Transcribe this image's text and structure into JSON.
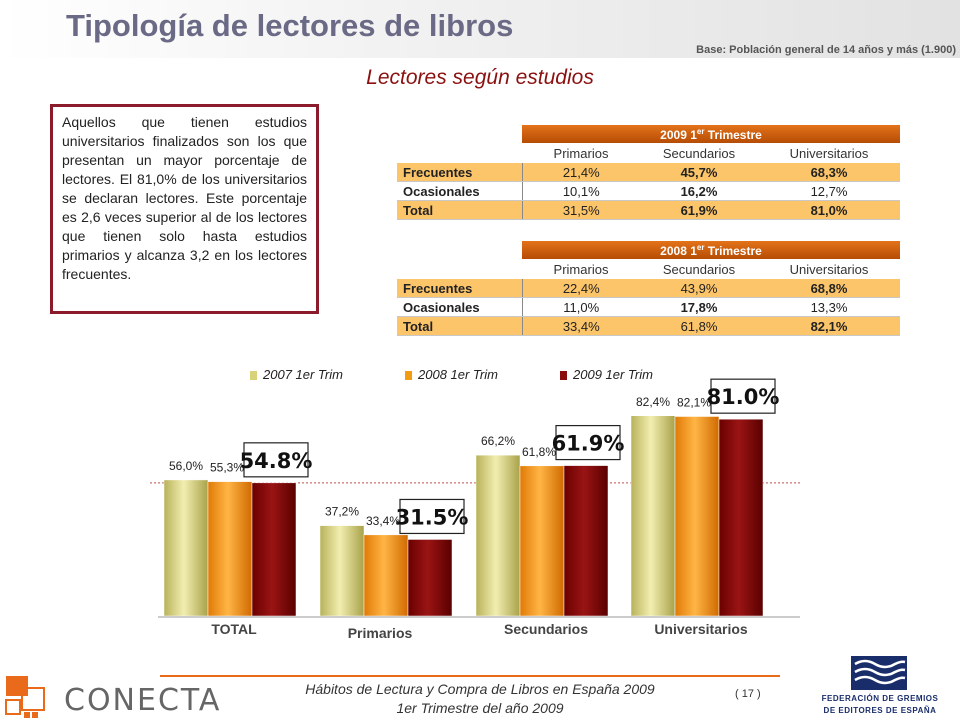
{
  "header": {
    "title": "Tipología de lectores de libros",
    "base": "Base: Población general de 14 años y más (1.900)",
    "subtitle": "Lectores según estudios"
  },
  "textbox": "Aquellos que tienen estudios universitarios finalizados son los que presentan un mayor porcentaje de lectores. El 81,0% de los universitarios se declaran lectores. Este porcentaje es 2,6 veces superior al de los lectores que tienen solo hasta estudios primarios y alcanza 3,2 en los lectores frecuentes.",
  "tables": [
    {
      "title_main": "2009 1",
      "title_sup": "er",
      "title_rest": " Trimestre",
      "columns": [
        "Primarios",
        "Secundarios",
        "Universitarios"
      ],
      "rows": [
        {
          "label": "Frecuentes",
          "values": [
            "21,4%",
            "45,7%",
            "68,3%"
          ]
        },
        {
          "label": "Ocasionales",
          "values": [
            "10,1%",
            "16,2%",
            "12,7%"
          ]
        },
        {
          "label": "Total",
          "values": [
            "31,5%",
            "61,9%",
            "81,0%"
          ]
        }
      ]
    },
    {
      "title_main": "2008 1",
      "title_sup": "er",
      "title_rest": " Trimestre",
      "columns": [
        "Primarios",
        "Secundarios",
        "Universitarios"
      ],
      "rows": [
        {
          "label": "Frecuentes",
          "values": [
            "22,4%",
            "43,9%",
            "68,8%"
          ]
        },
        {
          "label": "Ocasionales",
          "values": [
            "11,0%",
            "17,8%",
            "13,3%"
          ]
        },
        {
          "label": "Total",
          "values": [
            "33,4%",
            "61,8%",
            "82,1%"
          ]
        }
      ]
    }
  ],
  "chart_data": {
    "type": "bar",
    "categories": [
      "TOTAL",
      "Primarios",
      "Secundarios",
      "Universitarios"
    ],
    "series": [
      {
        "name": "2007 1er Trim",
        "values": [
          56.0,
          37.2,
          66.2,
          82.4
        ],
        "labels": [
          "56,0%",
          "37,2%",
          "66,2%",
          "82,4%"
        ],
        "color": "#d8d27a"
      },
      {
        "name": "2008 1er Trim",
        "values": [
          55.3,
          33.4,
          61.8,
          82.1
        ],
        "labels": [
          "55,3%",
          "33,4%",
          "61,8%",
          "82,1%"
        ],
        "color": "#f39c12"
      },
      {
        "name": "2009 1er Trim",
        "values": [
          54.8,
          31.5,
          61.9,
          81.0
        ],
        "labels": [
          "54.8%",
          "31.5%",
          "61.9%",
          "81.0%"
        ],
        "color": "#8b0a0a"
      }
    ],
    "reference_line": 54.8,
    "legend_position": "top",
    "grid": false
  },
  "footer": {
    "line1": "Hábitos de Lectura y Compra de Libros en España 2009",
    "line2": "1er Trimestre del año 2009",
    "page": "( 17 )",
    "logo_left": "CONECTA",
    "logo_right_1": "FEDERACIÓN DE GREMIOS",
    "logo_right_2": "DE EDITORES DE ESPAÑA"
  }
}
